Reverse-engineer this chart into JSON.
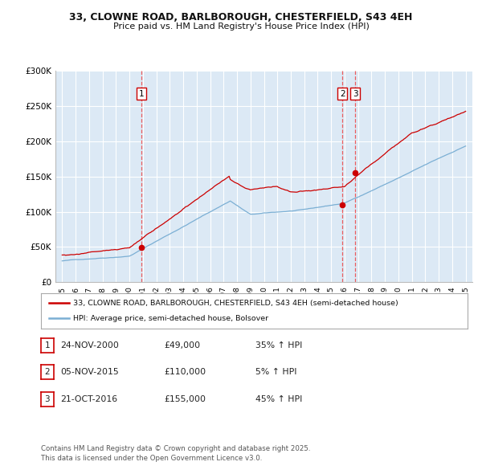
{
  "title_line1": "33, CLOWNE ROAD, BARLBOROUGH, CHESTERFIELD, S43 4EH",
  "title_line2": "Price paid vs. HM Land Registry's House Price Index (HPI)",
  "bg_color": "#dce9f5",
  "red_line_color": "#cc0000",
  "blue_line_color": "#7bafd4",
  "grid_color": "#ffffff",
  "ylim": [
    0,
    300000
  ],
  "yticks": [
    0,
    50000,
    100000,
    150000,
    200000,
    250000,
    300000
  ],
  "ytick_labels": [
    "£0",
    "£50K",
    "£100K",
    "£150K",
    "£200K",
    "£250K",
    "£300K"
  ],
  "sale_dates_num": [
    2000.9,
    2015.84,
    2016.8
  ],
  "sale_prices": [
    49000,
    110000,
    155000
  ],
  "sale_labels": [
    "1",
    "2",
    "3"
  ],
  "vline_color": "#ee4444",
  "legend_red_label": "33, CLOWNE ROAD, BARLBOROUGH, CHESTERFIELD, S43 4EH (semi-detached house)",
  "legend_blue_label": "HPI: Average price, semi-detached house, Bolsover",
  "table_rows": [
    [
      "1",
      "24-NOV-2000",
      "£49,000",
      "35% ↑ HPI"
    ],
    [
      "2",
      "05-NOV-2015",
      "£110,000",
      "5% ↑ HPI"
    ],
    [
      "3",
      "21-OCT-2016",
      "£155,000",
      "45% ↑ HPI"
    ]
  ],
  "footer_text": "Contains HM Land Registry data © Crown copyright and database right 2025.\nThis data is licensed under the Open Government Licence v3.0.",
  "xmin": 1994.5,
  "xmax": 2025.5
}
